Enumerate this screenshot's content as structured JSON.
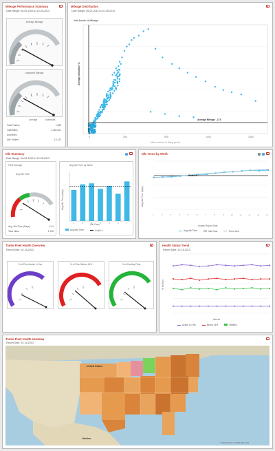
{
  "panels": {
    "mileage_summary": {
      "title": "Mileage Performance Summary",
      "date_range": "Date Range: 06-03-2013 to 10-05-2013",
      "gauge1_label": "Average Mileage",
      "gauge2_label": "Assessed Mileage",
      "gauge_bottom_left": "Average",
      "gauge_bottom_right": "Assessed",
      "stats": [
        {
          "label": "Total Trailers",
          "value": "1,580"
        },
        {
          "label": "Total Miles",
          "value": "3,284,521"
        },
        {
          "label": "Avg Miles",
          "value": ""
        },
        {
          "label": "Idle Trailers",
          "value": "15,122"
        }
      ]
    },
    "mileage_distribution": {
      "title": "Mileage Distribution",
      "date_range": "Date Range: 06-03-2013 to 10-05-2013",
      "chart_title": "Unit Assets vs Mileage",
      "avg_line_label": "Average Mileage - 174",
      "avg_vline_label": "Average Utilization %",
      "x_caption": "Miles traveled in billing period"
    },
    "idle_summary": {
      "title": "Idle Summary",
      "date_range": "Date Range: 06-03-2013 to 10-05-2013",
      "gauge_head": "Fleet Average",
      "gauge_label": "Avg Idle Time",
      "stat1_label": "Avg. Idle Time (Days)",
      "stat1_value": "11.4",
      "stat2_label": "Total Idlers",
      "stat2_value": "1,135",
      "bar_title": "Avg Idle Time by Week",
      "bar_ylabel": "Avg Idle Time (days)",
      "bar_xlabel": "Idle Days",
      "legend_bar": "Avg Idle Time",
      "legend_line": "Goal 14"
    },
    "idle_trend": {
      "title": "Idle Trend by Week",
      "goal_label": "Goal 14",
      "ylabel": "Avg Idle Time (days)",
      "legend_title": "Assets Report Date",
      "legend1": "Avg Idle Time",
      "legend2": "Idle Goal",
      "legend3": "Trend Line"
    },
    "fleet_health": {
      "title": "Trailer Fleet Health Overview",
      "report_date": "Report Date: 10-18-2013",
      "gauges": [
        {
          "title": "% of Fleet Active 14 hrs",
          "color": "#6c3fc6"
        },
        {
          "title": "% of Fleet Below 14%",
          "color": "#e02020"
        },
        {
          "title": "% of Healthy Fleet",
          "color": "#25b43a"
        }
      ]
    },
    "health_status": {
      "title": "Health Status Trend",
      "report_date": "Report Date: 10-18-2013",
      "ylabel": "% of Fleet",
      "xlabel": "Weeks",
      "legend": [
        {
          "label": "Active 14 Hrs",
          "color": "#8e6fd8"
        },
        {
          "label": "Below 14%",
          "color": "#e03a3a"
        },
        {
          "label": "Healthy",
          "color": "#3cc24d"
        }
      ]
    },
    "heatmap": {
      "title": "Trailer Fleet Health Heatmap",
      "report_date": "Report Date: 10-18-2013",
      "label_us": "United States",
      "label_mexico": "Mexico",
      "attribution": "© 2013 Nokia © 2013 Microsoft"
    }
  },
  "chart_data": [
    {
      "type": "bar",
      "title": "Avg Idle Time by Week",
      "categories": [
        "1",
        "2",
        "3",
        "4",
        "5",
        "6",
        "7"
      ],
      "series": [
        {
          "name": "Avg Idle Time",
          "values": [
            12.5,
            14.8,
            15.2,
            13.0,
            14.2,
            11.0,
            16.0
          ]
        },
        {
          "name": "Goal 14",
          "values": [
            14,
            14,
            14,
            14,
            14,
            14,
            14
          ]
        }
      ],
      "ylim": [
        0,
        20
      ],
      "ylabel": "Avg Idle Time (days)",
      "xlabel": "Idle Days"
    },
    {
      "type": "line",
      "title": "Idle Trend by Week",
      "x": [
        1,
        2,
        3,
        4,
        5,
        6,
        7,
        8,
        9,
        10,
        11,
        12,
        13,
        14
      ],
      "series": [
        {
          "name": "Avg Idle Time",
          "values": [
            13.2,
            13.4,
            13.5,
            13.8,
            14.1,
            14.4,
            14.6,
            15.0,
            15.4,
            15.6,
            15.9,
            16.2,
            16.0,
            16.3
          ]
        },
        {
          "name": "Idle Goal",
          "values": [
            14,
            14,
            14,
            14,
            14,
            14,
            14,
            14,
            14,
            14,
            14,
            14,
            14,
            14
          ]
        },
        {
          "name": "Trend Line",
          "values": [
            13.1,
            13.4,
            13.7,
            13.9,
            14.2,
            14.5,
            14.8,
            15.0,
            15.3,
            15.6,
            15.8,
            16.1,
            16.4,
            16.6
          ]
        }
      ],
      "ylim": [
        0,
        20
      ],
      "ylabel": "Avg Idle Time (days)"
    },
    {
      "type": "line",
      "title": "Health Status Trend",
      "x": [
        1,
        2,
        3,
        4,
        5,
        6,
        7,
        8,
        9,
        10,
        11,
        12
      ],
      "series": [
        {
          "name": "Active 14 Hrs",
          "values": [
            80,
            82,
            81,
            79,
            80,
            82,
            81,
            80,
            81,
            82,
            80,
            81
          ]
        },
        {
          "name": "Below 14%",
          "values": [
            58,
            57,
            59,
            56,
            58,
            59,
            57,
            58,
            59,
            57,
            58,
            58
          ]
        },
        {
          "name": "Healthy",
          "values": [
            42,
            40,
            43,
            41,
            42,
            40,
            43,
            41,
            42,
            43,
            41,
            42
          ]
        },
        {
          "name": "Low",
          "values": [
            12,
            12,
            12,
            12,
            12,
            12,
            12,
            12,
            12,
            12,
            12,
            12
          ]
        }
      ],
      "ylim": [
        0,
        100
      ],
      "ylabel": "% of Fleet",
      "xlabel": "Weeks"
    },
    {
      "type": "scatter",
      "title": "Unit Assets vs Mileage",
      "x_range": [
        0,
        1500
      ],
      "y_range": [
        0,
        1000
      ],
      "avg_mileage": 174,
      "points": [
        [
          200,
          540
        ],
        [
          215,
          560
        ],
        [
          230,
          600
        ],
        [
          240,
          580
        ],
        [
          250,
          620
        ],
        [
          260,
          660
        ],
        [
          270,
          640
        ],
        [
          280,
          700
        ],
        [
          300,
          760
        ],
        [
          320,
          800
        ],
        [
          340,
          820
        ],
        [
          360,
          860
        ],
        [
          380,
          880
        ],
        [
          420,
          900
        ],
        [
          460,
          940
        ],
        [
          500,
          960
        ],
        [
          560,
          780
        ],
        [
          620,
          700
        ],
        [
          700,
          640
        ],
        [
          760,
          600
        ],
        [
          830,
          560
        ],
        [
          900,
          520
        ],
        [
          980,
          480
        ],
        [
          1060,
          430
        ],
        [
          1130,
          400
        ],
        [
          1200,
          380
        ],
        [
          1280,
          360
        ],
        [
          1400,
          300
        ],
        [
          520,
          200
        ],
        [
          640,
          180
        ],
        [
          760,
          160
        ],
        [
          880,
          150
        ]
      ]
    }
  ]
}
